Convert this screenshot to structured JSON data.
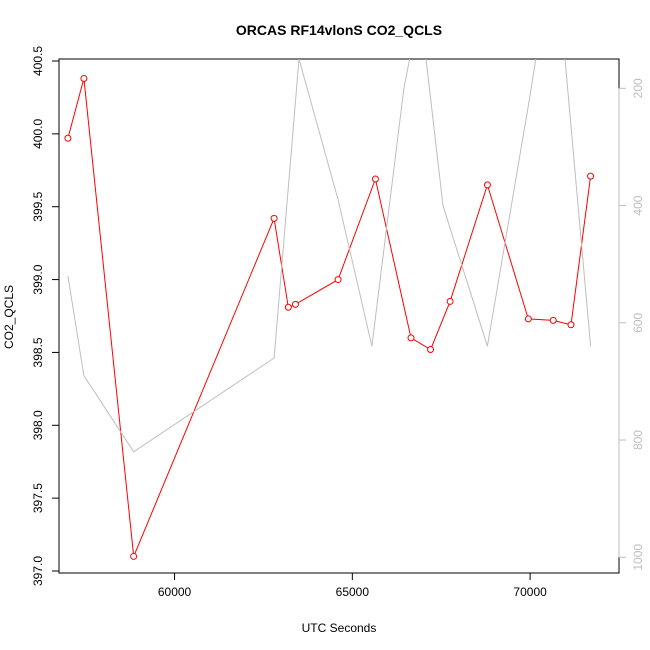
{
  "chart_data": {
    "type": "line",
    "title": "ORCAS RF14vlonS CO2_QCLS",
    "xlabel": "UTC Seconds",
    "ylabel": "CO2_QCLS",
    "xlim": [
      56750,
      72500
    ],
    "ylim": [
      397.0,
      400.5
    ],
    "y2lim": [
      1020,
      150
    ],
    "xticks": [
      60000,
      65000,
      70000
    ],
    "yticks": [
      397.0,
      397.5,
      398.0,
      398.5,
      399.0,
      399.5,
      400.0,
      400.5
    ],
    "y2ticks": [
      200,
      400,
      600,
      800,
      1000
    ],
    "xtick_labels": [
      "60000",
      "65000",
      "70000"
    ],
    "ytick_labels": [
      "397.0",
      "397.5",
      "398.0",
      "398.5",
      "399.0",
      "399.5",
      "400.0",
      "400.5"
    ],
    "y2tick_labels": [
      "200",
      "400",
      "600",
      "800",
      "1000"
    ],
    "grid": false,
    "colors": {
      "primary": "#ff0000",
      "secondary": "#bebebe",
      "axis": "#000000"
    },
    "series": [
      {
        "axis": "left",
        "markers": "open-circle",
        "color": "#ff0000",
        "x": [
          57000,
          57450,
          58850,
          62800,
          63200,
          63400,
          64600,
          65650,
          66650,
          67200,
          67750,
          68800,
          69950,
          70650,
          71150,
          71700
        ],
        "y": [
          399.97,
          400.38,
          397.1,
          399.42,
          398.81,
          398.83,
          399.0,
          399.69,
          398.6,
          398.52,
          398.85,
          399.65,
          398.73,
          398.72,
          398.69,
          399.71
        ]
      },
      {
        "axis": "right",
        "markers": "none",
        "color": "#bebebe",
        "x": [
          57000,
          57450,
          58850,
          62800,
          63500,
          64600,
          65550,
          66450,
          66900,
          67550,
          68800,
          69950,
          70400,
          70850,
          71700
        ],
        "y": [
          520,
          690,
          820,
          660,
          150,
          390,
          640,
          200,
          60,
          400,
          640,
          230,
          60,
          60,
          640
        ]
      }
    ]
  }
}
